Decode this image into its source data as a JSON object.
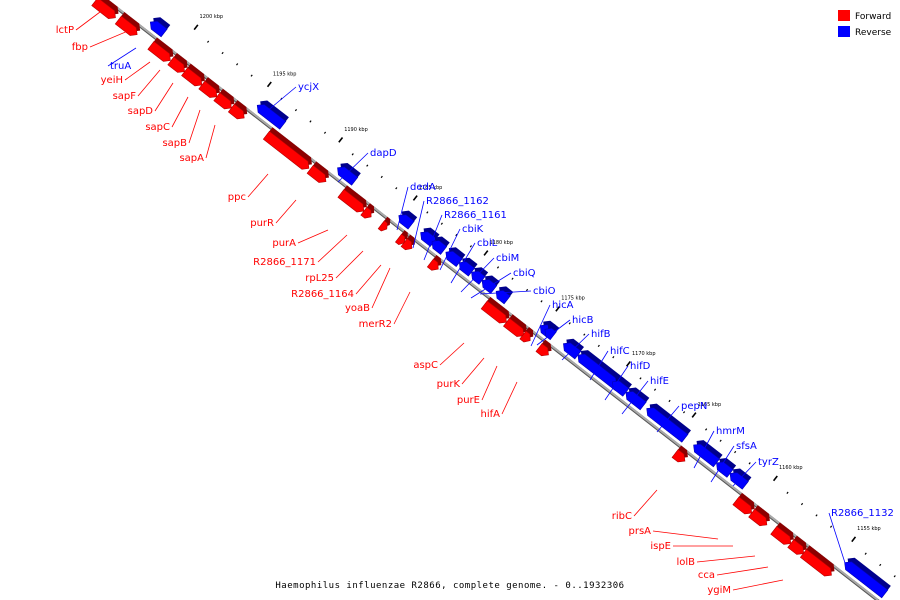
{
  "caption": "Haemophilus influenzae R2866, complete genome. - 0..1932306",
  "legend": {
    "forward_label": "Forward",
    "reverse_label": "Reverse",
    "forward_color": "#ff0000",
    "reverse_color": "#0000ff"
  },
  "ticks": [
    {
      "label": "1200 kbp"
    },
    {
      "label": "1195 kbp"
    },
    {
      "label": "1190 kbp"
    },
    {
      "label": "1185 kbp"
    },
    {
      "label": "1180 kbp"
    },
    {
      "label": "1175 kbp"
    },
    {
      "label": "1170 kbp"
    },
    {
      "label": "1165 kbp"
    },
    {
      "label": "1160 kbp"
    },
    {
      "label": "1155 kbp"
    }
  ],
  "forward_genes": [
    "lctP",
    "fbp",
    "yeiH",
    "sapF",
    "sapD",
    "sapC",
    "sapB",
    "sapA",
    "ppc",
    "purR",
    "purA",
    "R2866_1171",
    "rpL25",
    "R2866_1164",
    "yoaB",
    "merR2",
    "aspC",
    "purK",
    "purE",
    "hifA",
    "ribC",
    "prsA",
    "ispE",
    "lolB",
    "cca",
    "ygiM"
  ],
  "reverse_genes": [
    "truA",
    "ycjX",
    "dapD",
    "dedA",
    "R2866_1162",
    "R2866_1161",
    "cbiK",
    "cbiL",
    "cbiM",
    "cbiQ",
    "cbiO",
    "hicA",
    "hicB",
    "hifB",
    "hifC",
    "hifD",
    "hifE",
    "pepN",
    "hmrM",
    "sfsA",
    "tyrZ",
    "R2866_1132"
  ]
}
